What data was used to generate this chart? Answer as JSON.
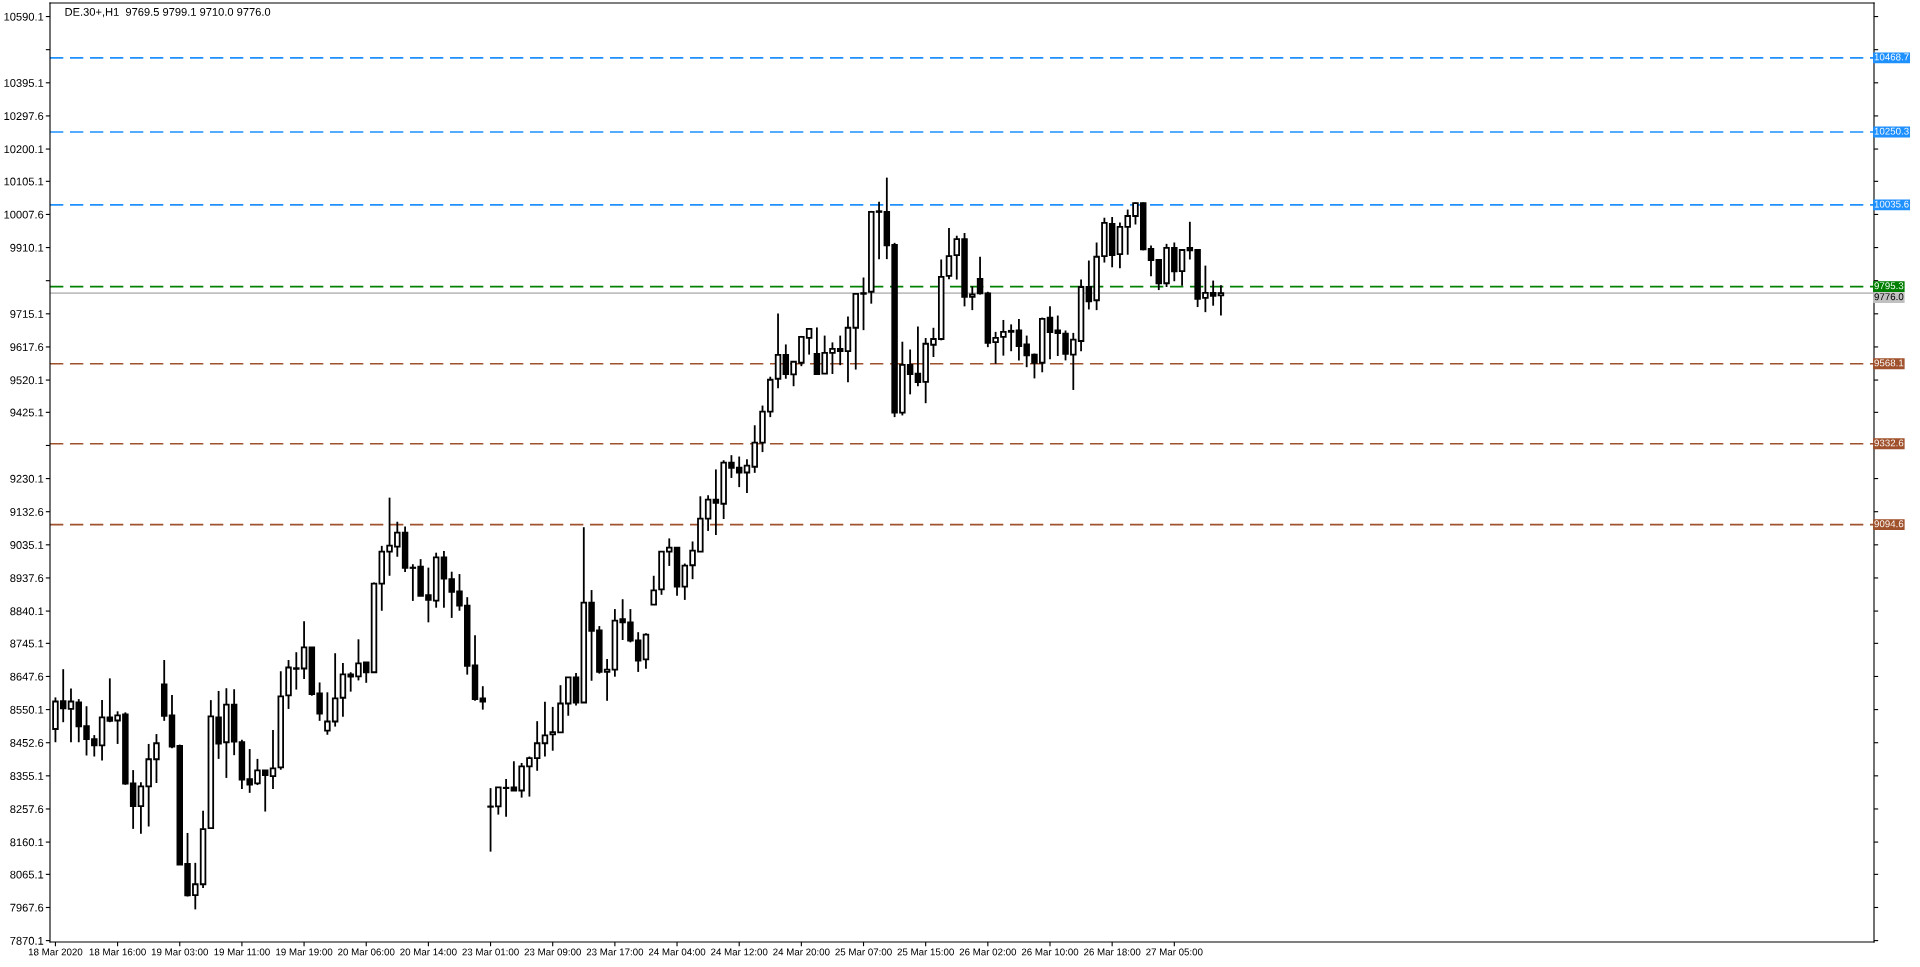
{
  "chart_data": {
    "type": "candlestick",
    "title": "DE.30+,H1  9769.5 9799.1 9710.0 9776.0",
    "categories": [
      "18 Mar 2020",
      null,
      null,
      null,
      null,
      null,
      null,
      null,
      "18 Mar 16:00",
      null,
      null,
      null,
      null,
      null,
      null,
      null,
      "19 Mar 03:00",
      null,
      null,
      null,
      null,
      null,
      null,
      null,
      "19 Mar 11:00",
      null,
      null,
      null,
      null,
      null,
      null,
      null,
      "19 Mar 19:00",
      null,
      null,
      null,
      null,
      null,
      null,
      null,
      "20 Mar 06:00",
      null,
      null,
      null,
      null,
      null,
      null,
      null,
      "20 Mar 14:00",
      null,
      null,
      null,
      null,
      null,
      null,
      null,
      "23 Mar 01:00",
      null,
      null,
      null,
      null,
      null,
      null,
      null,
      "23 Mar 09:00",
      null,
      null,
      null,
      null,
      null,
      null,
      null,
      "23 Mar 17:00",
      null,
      null,
      null,
      null,
      null,
      null,
      null,
      "24 Mar 04:00",
      null,
      null,
      null,
      null,
      null,
      null,
      null,
      "24 Mar 12:00",
      null,
      null,
      null,
      null,
      null,
      null,
      null,
      "24 Mar 20:00",
      null,
      null,
      null,
      null,
      null,
      null,
      null,
      "25 Mar 07:00",
      null,
      null,
      null,
      null,
      null,
      null,
      null,
      "25 Mar 15:00",
      null,
      null,
      null,
      null,
      null,
      null,
      null,
      "26 Mar 02:00",
      null,
      null,
      null,
      null,
      null,
      null,
      null,
      "26 Mar 10:00",
      null,
      null,
      null,
      null,
      null,
      null,
      null,
      "26 Mar 18:00",
      null,
      null,
      null,
      null,
      null,
      null,
      null,
      "27 Mar 05:00",
      null,
      null,
      null,
      null,
      null,
      null
    ],
    "ohlc": [
      [
        8493,
        8586,
        8454,
        8574
      ],
      [
        8575,
        8669,
        8513,
        8554
      ],
      [
        8552,
        8612,
        8454,
        8574
      ],
      [
        8571,
        8581,
        8454,
        8501
      ],
      [
        8501,
        8560,
        8415,
        8463
      ],
      [
        8463,
        8475,
        8412,
        8445
      ],
      [
        8445,
        8578,
        8400,
        8527
      ],
      [
        8527,
        8642,
        8513,
        8517
      ],
      [
        8518,
        8545,
        8449,
        8533
      ],
      [
        8536,
        8542,
        8329,
        8332
      ],
      [
        8333,
        8372,
        8199,
        8266
      ],
      [
        8266,
        8336,
        8185,
        8324
      ],
      [
        8324,
        8449,
        8206,
        8404
      ],
      [
        8404,
        8478,
        8334,
        8451
      ],
      [
        8624,
        8696,
        8517,
        8532
      ],
      [
        8533,
        8593,
        8436,
        8441
      ],
      [
        8443,
        8447,
        8094,
        8094
      ],
      [
        8096,
        8187,
        8000,
        8003
      ],
      [
        8004,
        8099,
        7962,
        8036
      ],
      [
        8036,
        8252,
        8025,
        8198
      ],
      [
        8201,
        8578,
        8200,
        8530
      ],
      [
        8527,
        8605,
        8405,
        8450
      ],
      [
        8454,
        8613,
        8349,
        8565
      ],
      [
        8565,
        8610,
        8416,
        8456
      ],
      [
        8454,
        8461,
        8316,
        8344
      ],
      [
        8345,
        8434,
        8305,
        8329
      ],
      [
        8333,
        8405,
        8328,
        8371
      ],
      [
        8371,
        8372,
        8250,
        8357
      ],
      [
        8354,
        8490,
        8316,
        8377
      ],
      [
        8380,
        8663,
        8373,
        8589
      ],
      [
        8592,
        8696,
        8552,
        8674
      ],
      [
        8672,
        8719,
        8609,
        8670
      ],
      [
        8671,
        8810,
        8640,
        8733
      ],
      [
        8733,
        8733,
        8591,
        8596
      ],
      [
        8598,
        8630,
        8517,
        8538
      ],
      [
        8488,
        8601,
        8476,
        8515
      ],
      [
        8515,
        8716,
        8500,
        8583
      ],
      [
        8585,
        8687,
        8529,
        8654
      ],
      [
        8654,
        8660,
        8603,
        8647
      ],
      [
        8648,
        8757,
        8636,
        8686
      ],
      [
        8689,
        8689,
        8629,
        8660
      ],
      [
        8660,
        8924,
        8660,
        8921
      ],
      [
        8921,
        9032,
        8841,
        9015
      ],
      [
        9015,
        9174,
        8944,
        9033
      ],
      [
        9030,
        9103,
        9000,
        9071
      ],
      [
        9071,
        9089,
        8955,
        8967
      ],
      [
        8968,
        8978,
        8870,
        8967
      ],
      [
        8971,
        8993,
        8885,
        8885
      ],
      [
        8887,
        8968,
        8807,
        8873
      ],
      [
        8871,
        9012,
        8850,
        8998
      ],
      [
        8998,
        9017,
        8850,
        8936
      ],
      [
        8934,
        8956,
        8820,
        8897
      ],
      [
        8898,
        8949,
        8841,
        8856
      ],
      [
        8856,
        8881,
        8653,
        8679
      ],
      [
        8680,
        8769,
        8576,
        8581
      ],
      [
        8583,
        8619,
        8550,
        8574
      ],
      [
        8265,
        8319,
        8132,
        8264
      ],
      [
        8265,
        8322,
        8241,
        8321
      ],
      [
        8320,
        8346,
        8235,
        8319
      ],
      [
        8321,
        8398,
        8311,
        8312
      ],
      [
        8312,
        8393,
        8291,
        8383
      ],
      [
        8383,
        8412,
        8294,
        8407
      ],
      [
        8407,
        8516,
        8370,
        8451
      ],
      [
        8451,
        8573,
        8412,
        8474
      ],
      [
        8477,
        8558,
        8429,
        8484
      ],
      [
        8483,
        8622,
        8483,
        8568
      ],
      [
        8568,
        8645,
        8532,
        8645
      ],
      [
        8645,
        8658,
        8562,
        8571
      ],
      [
        8571,
        9087,
        8571,
        8865
      ],
      [
        8865,
        8902,
        8635,
        8782
      ],
      [
        8783,
        8796,
        8656,
        8661
      ],
      [
        8661,
        8699,
        8576,
        8668
      ],
      [
        8668,
        8846,
        8647,
        8812
      ],
      [
        8816,
        8875,
        8755,
        8807
      ],
      [
        8807,
        8846,
        8748,
        8753
      ],
      [
        8754,
        8778,
        8661,
        8694
      ],
      [
        8698,
        8775,
        8670,
        8771
      ],
      [
        8859,
        8944,
        8859,
        8901
      ],
      [
        8904,
        9015,
        8888,
        9015
      ],
      [
        9015,
        9054,
        8973,
        9027
      ],
      [
        9027,
        9027,
        8885,
        8912
      ],
      [
        8912,
        8980,
        8873,
        8974
      ],
      [
        8975,
        9045,
        8934,
        9018
      ],
      [
        9015,
        9178,
        9015,
        9112
      ],
      [
        9112,
        9181,
        9076,
        9168
      ],
      [
        9168,
        9257,
        9064,
        9159
      ],
      [
        9156,
        9284,
        9111,
        9277
      ],
      [
        9277,
        9299,
        9232,
        9262
      ],
      [
        9262,
        9295,
        9205,
        9248
      ],
      [
        9248,
        9287,
        9188,
        9268
      ],
      [
        9265,
        9387,
        9247,
        9336
      ],
      [
        9336,
        9445,
        9308,
        9427
      ],
      [
        9427,
        9530,
        9411,
        9521
      ],
      [
        9524,
        9716,
        9496,
        9594
      ],
      [
        9594,
        9625,
        9524,
        9538
      ],
      [
        9537,
        9574,
        9502,
        9574
      ],
      [
        9571,
        9650,
        9561,
        9647
      ],
      [
        9644,
        9671,
        9595,
        9671
      ],
      [
        9597,
        9675,
        9538,
        9538
      ],
      [
        9539,
        9651,
        9538,
        9600
      ],
      [
        9600,
        9631,
        9538,
        9612
      ],
      [
        9612,
        9651,
        9564,
        9605
      ],
      [
        9605,
        9707,
        9514,
        9674
      ],
      [
        9674,
        9774,
        9551,
        9774
      ],
      [
        9774,
        9822,
        9667,
        9776
      ],
      [
        9780,
        10018,
        9745,
        10015
      ],
      [
        10015,
        10045,
        9876,
        10017
      ],
      [
        10015,
        10116,
        9876,
        9917
      ],
      [
        9918,
        9924,
        9411,
        9424
      ],
      [
        9424,
        9633,
        9416,
        9565
      ],
      [
        9565,
        9610,
        9478,
        9538
      ],
      [
        9539,
        9678,
        9502,
        9514
      ],
      [
        9515,
        9644,
        9452,
        9627
      ],
      [
        9624,
        9674,
        9588,
        9641
      ],
      [
        9641,
        9875,
        9637,
        9824
      ],
      [
        9827,
        9968,
        9817,
        9885
      ],
      [
        9888,
        9945,
        9816,
        9935
      ],
      [
        9935,
        9953,
        9737,
        9765
      ],
      [
        9765,
        9796,
        9726,
        9772
      ],
      [
        9818,
        9883,
        9772,
        9775
      ],
      [
        9775,
        9780,
        9617,
        9630
      ],
      [
        9632,
        9662,
        9568,
        9644
      ],
      [
        9647,
        9697,
        9592,
        9662
      ],
      [
        9665,
        9684,
        9605,
        9662
      ],
      [
        9666,
        9700,
        9578,
        9620
      ],
      [
        9625,
        9651,
        9558,
        9593
      ],
      [
        9595,
        9598,
        9525,
        9571
      ],
      [
        9571,
        9704,
        9543,
        9700
      ],
      [
        9704,
        9737,
        9581,
        9661
      ],
      [
        9666,
        9710,
        9591,
        9658
      ],
      [
        9657,
        9666,
        9578,
        9597
      ],
      [
        9595,
        9659,
        9491,
        9639
      ],
      [
        9635,
        9816,
        9605,
        9794
      ],
      [
        9794,
        9872,
        9728,
        9752
      ],
      [
        9755,
        9925,
        9726,
        9883
      ],
      [
        9885,
        9998,
        9866,
        9983
      ],
      [
        9980,
        10000,
        9852,
        9888
      ],
      [
        9891,
        9984,
        9849,
        9971
      ],
      [
        9971,
        10022,
        9889,
        10003
      ],
      [
        10003,
        10043,
        9978,
        10041
      ],
      [
        10041,
        10043,
        9902,
        9905
      ],
      [
        9906,
        9916,
        9826,
        9873
      ],
      [
        9874,
        9874,
        9785,
        9805
      ],
      [
        9805,
        9921,
        9794,
        9909
      ],
      [
        9909,
        9925,
        9811,
        9840
      ],
      [
        9841,
        9906,
        9798,
        9903
      ],
      [
        9909,
        9986,
        9875,
        9902
      ],
      [
        9903,
        9903,
        9735,
        9759
      ],
      [
        9762,
        9857,
        9720,
        9777
      ],
      [
        9777,
        9813,
        9739,
        9768
      ],
      [
        9769.5,
        9799.1,
        9710.0,
        9776.0
      ]
    ],
    "ylim": [
      7866,
      10630
    ],
    "yticks": [
      10590.1,
      {
        "value": 10492.6,
        "label": null
      },
      10395.1,
      10297.6,
      10200.1,
      10105.1,
      10007.6,
      9910.1,
      {
        "value": 9812.6,
        "label": null
      },
      9715.1,
      9617.6,
      9520.1,
      9425.1,
      {
        "value": 9327.6,
        "label": null
      },
      9230.1,
      9132.6,
      9035.1,
      8937.6,
      8840.1,
      8745.1,
      8647.6,
      8550.1,
      8452.6,
      8355.1,
      8257.6,
      8160.1,
      8065.1,
      7967.6,
      7870.1
    ],
    "ref_lines": [
      {
        "axis": "y",
        "value": 10468.7,
        "label": "10468.7",
        "color": "#1e90ff",
        "line_style": "dashed"
      },
      {
        "axis": "y",
        "value": 10250.3,
        "label": "10250.3",
        "color": "#1e90ff",
        "line_style": "dashed"
      },
      {
        "axis": "y",
        "value": 10035.6,
        "label": "10035.6",
        "color": "#1e90ff",
        "line_style": "dashed"
      },
      {
        "axis": "y",
        "value": 9795.3,
        "label": "9795.3",
        "color": "#008000",
        "line_style": "dashed"
      },
      {
        "axis": "y",
        "value": 9776.0,
        "label": "9776.0",
        "color": "#c0c0c0",
        "line_style": "solid"
      },
      {
        "axis": "y",
        "value": 9568.1,
        "label": "9568.1",
        "color": "#a0522d",
        "line_style": "dashed"
      },
      {
        "axis": "y",
        "value": 9332.6,
        "label": "9332.6",
        "color": "#a0522d",
        "line_style": "dashed"
      },
      {
        "axis": "y",
        "value": 9094.6,
        "label": "9094.6",
        "color": "#a0522d",
        "line_style": "dashed"
      }
    ],
    "grid": false,
    "legend": false
  }
}
